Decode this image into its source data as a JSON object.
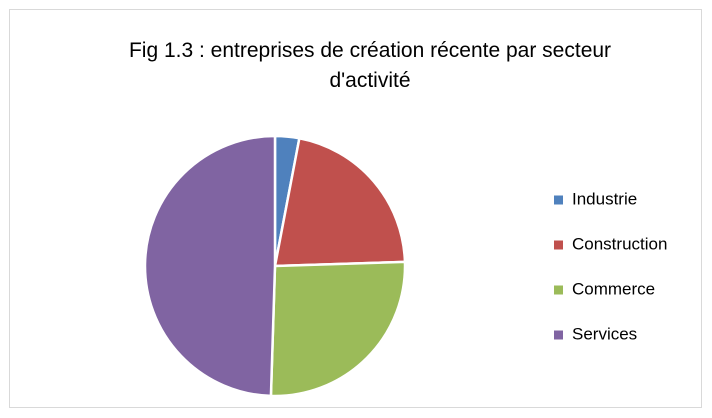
{
  "chart_data": {
    "type": "pie",
    "title": "Fig 1.3 : entreprises de création récente par secteur d'activité",
    "categories": [
      "Industrie",
      "Construction",
      "Commerce",
      "Services"
    ],
    "values": [
      3,
      21.5,
      26,
      49.5
    ],
    "colors": [
      "#4f81bd",
      "#c0504d",
      "#9bbb59",
      "#8064a2"
    ],
    "legend": "right"
  }
}
